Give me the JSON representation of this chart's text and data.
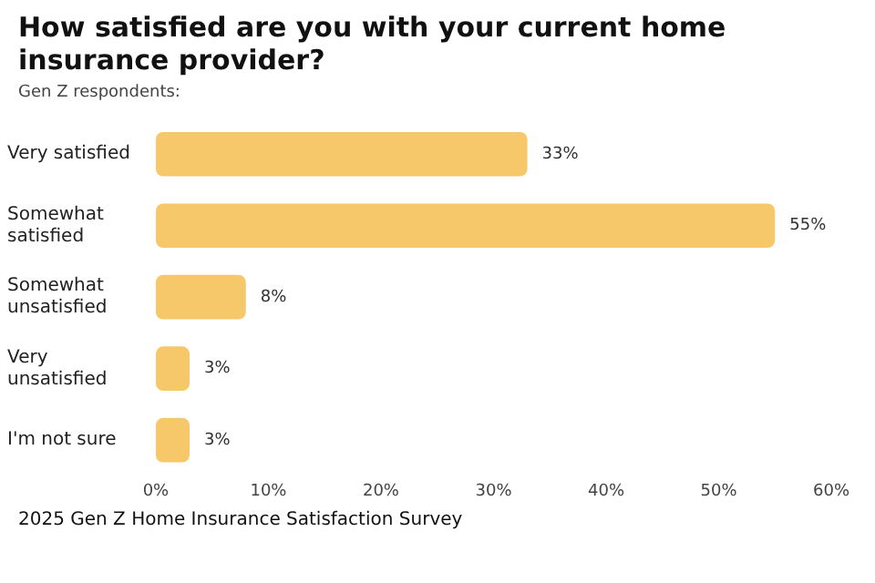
{
  "chart_data": {
    "type": "bar",
    "orientation": "horizontal",
    "title": "How satisfied are you with your current home insurance provider?",
    "subtitle": "Gen Z respondents:",
    "categories": [
      "Very satisfied",
      "Somewhat satisfied",
      "Somewhat unsatisfied",
      "Very unsatisfied",
      "I'm not sure"
    ],
    "values": [
      33,
      55,
      8,
      3,
      3
    ],
    "color": "#f6c86a",
    "value_labels": [
      "33%",
      "55%",
      "8%",
      "3%",
      "3%"
    ],
    "xlim": [
      0,
      60
    ],
    "xticks": [
      {
        "value": 0,
        "label": "0%"
      },
      {
        "value": 10,
        "label": "10%"
      },
      {
        "value": 20,
        "label": "20%"
      },
      {
        "value": 30,
        "label": "30%"
      },
      {
        "value": 40,
        "label": "40%"
      },
      {
        "value": 50,
        "label": "50%"
      },
      {
        "value": 60,
        "label": "60%"
      }
    ],
    "grid": false,
    "legend": false,
    "annotations": [
      "2025 Gen Z Home Insurance Satisfaction Survey"
    ]
  }
}
